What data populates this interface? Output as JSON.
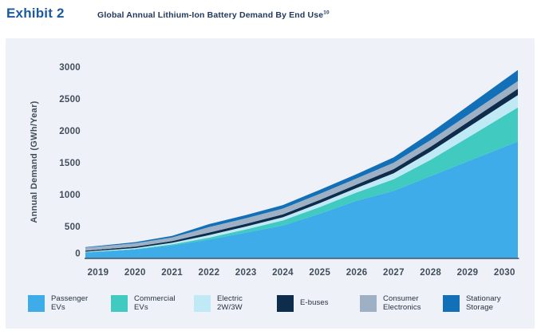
{
  "header": {
    "exhibit_label": "Exhibit 2",
    "title": "Global Annual Lithium-Ion Battery Demand By End Use",
    "title_sup": "10"
  },
  "colors": {
    "panel_background": "#EEF1F7",
    "exhibit_label": "#1B5AA1",
    "title_text": "#20395C",
    "axis_text": "#414E5A",
    "axis_line": "#47535F",
    "legend_text": "#25323F"
  },
  "chart_data": {
    "type": "area",
    "stacked": true,
    "title": "Global Annual Lithium-Ion Battery Demand By End Use",
    "title_footnote": "10",
    "xlabel": "",
    "ylabel": "Annual Demand (GWh/Year)",
    "ylim": [
      0,
      3000
    ],
    "ytick_step": 500,
    "yticks": [
      "0",
      "500",
      "1000",
      "1500",
      "2000",
      "2500",
      "3000"
    ],
    "grid": false,
    "legend_position": "bottom",
    "categories": [
      "2019",
      "2020",
      "2021",
      "2022",
      "2023",
      "2024",
      "2025",
      "2026",
      "2027",
      "2028",
      "2029",
      "2030"
    ],
    "series": [
      {
        "name": "Passenger EVs",
        "label_lines": [
          "Passenger",
          "EVs"
        ],
        "color": "#3FACEA",
        "values": [
          105,
          140,
          205,
          295,
          405,
          515,
          700,
          905,
          1060,
          1290,
          1520,
          1750
        ]
      },
      {
        "name": "Commercial EVs",
        "label_lines": [
          "Commercial",
          "EVs"
        ],
        "color": "#41CABF",
        "values": [
          5,
          8,
          15,
          30,
          50,
          80,
          105,
          130,
          180,
          255,
          370,
          490
        ]
      },
      {
        "name": "Electric 2W/3W",
        "label_lines": [
          "Electric",
          "2W/3W"
        ],
        "color": "#BFE9F4",
        "values": [
          10,
          15,
          25,
          40,
          45,
          50,
          62,
          70,
          95,
          130,
          160,
          185
        ]
      },
      {
        "name": "E-buses",
        "label_lines": [
          "E-buses"
        ],
        "color": "#0E2D4D",
        "values": [
          18,
          22,
          28,
          40,
          42,
          46,
          50,
          55,
          65,
          75,
          85,
          95
        ]
      },
      {
        "name": "Consumer Electronics",
        "label_lines": [
          "Consumer",
          "Electronics"
        ],
        "color": "#9EB0C4",
        "values": [
          48,
          52,
          55,
          85,
          88,
          90,
          95,
          95,
          100,
          105,
          110,
          118
        ]
      },
      {
        "name": "Stationary Storage",
        "label_lines": [
          "Stationary",
          "Storage"
        ],
        "color": "#1170B8",
        "values": [
          10,
          18,
          25,
          48,
          50,
          55,
          63,
          67,
          85,
          115,
          140,
          165
        ]
      }
    ]
  }
}
